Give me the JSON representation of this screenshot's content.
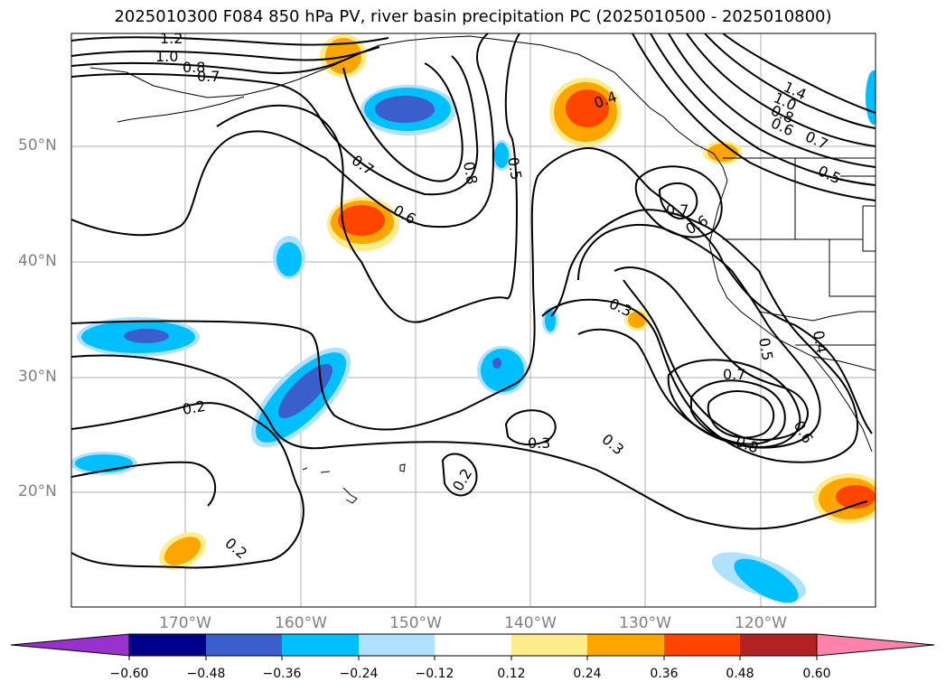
{
  "title": "2025010300 F084 850 hPa PV, river basin precipitation PC (2025010500 - 2025010800)",
  "lat_labels": [
    "50°N",
    "40°N",
    "30°N",
    "20°N"
  ],
  "lon_labels": [
    "170°W",
    "160°W",
    "150°W",
    "140°W",
    "130°W",
    "120°W"
  ],
  "colorbar": {
    "ticks": [
      "−0.60",
      "−0.48",
      "−0.36",
      "−0.24",
      "−0.12",
      "0.12",
      "0.24",
      "0.36",
      "0.48",
      "0.60"
    ],
    "colors": [
      "#9932cc",
      "#00008b",
      "#3a5fcd",
      "#00bfff",
      "#b0e2ff",
      "#ffffff",
      "#ffec8b",
      "#ffa500",
      "#ff4500",
      "#b22222",
      "#ff82ab"
    ]
  },
  "contour_labels": [
    "1.2",
    "1.0",
    "0.8",
    "0.7",
    "0.7",
    "0.6",
    "0.8",
    "0.5",
    "0.4",
    "0.7",
    "0.6",
    "0.3",
    "0.5",
    "0.4",
    "0.7",
    "0.8",
    "0.6",
    "0.3",
    "0.3",
    "0.2",
    "0.2",
    "0.2",
    "1.4",
    "1.0",
    "0.8",
    "0.6",
    "0.7",
    "0.5"
  ]
}
